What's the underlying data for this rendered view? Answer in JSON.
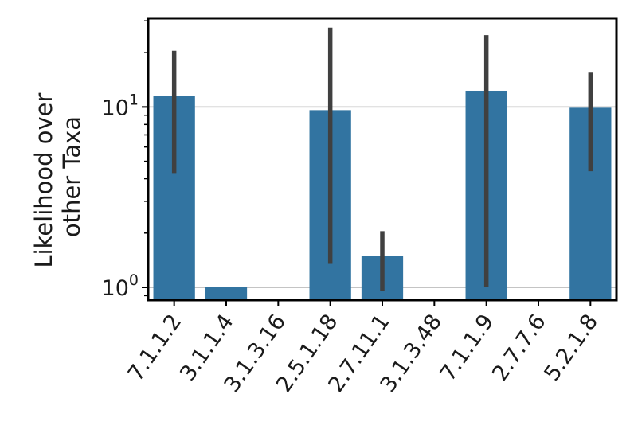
{
  "chart_data": {
    "type": "bar",
    "title": "",
    "xlabel": "",
    "ylabel_lines": [
      "Likelihood over",
      "other Taxa"
    ],
    "yscale": "log",
    "ylim": [
      0.85,
      31
    ],
    "yticks": [
      {
        "value": 1,
        "base": "10",
        "exp": "0"
      },
      {
        "value": 10,
        "base": "10",
        "exp": "1"
      }
    ],
    "grid": "horizontal major",
    "bar_color": "#3274a1",
    "errorbar_color": "#404040",
    "categories": [
      "7.1.1.2",
      "3.1.1.4",
      "3.1.3.16",
      "2.5.1.18",
      "2.7.11.1",
      "3.1.3.48",
      "7.1.1.9",
      "2.7.7.6",
      "5.2.1.8"
    ],
    "values": [
      11.5,
      1.0,
      null,
      9.6,
      1.5,
      null,
      12.3,
      null,
      9.9
    ],
    "error_low": [
      4.3,
      null,
      null,
      1.35,
      0.95,
      null,
      1.0,
      null,
      4.4
    ],
    "error_high": [
      20.5,
      null,
      null,
      27.5,
      2.05,
      null,
      25.0,
      null,
      15.5
    ]
  }
}
